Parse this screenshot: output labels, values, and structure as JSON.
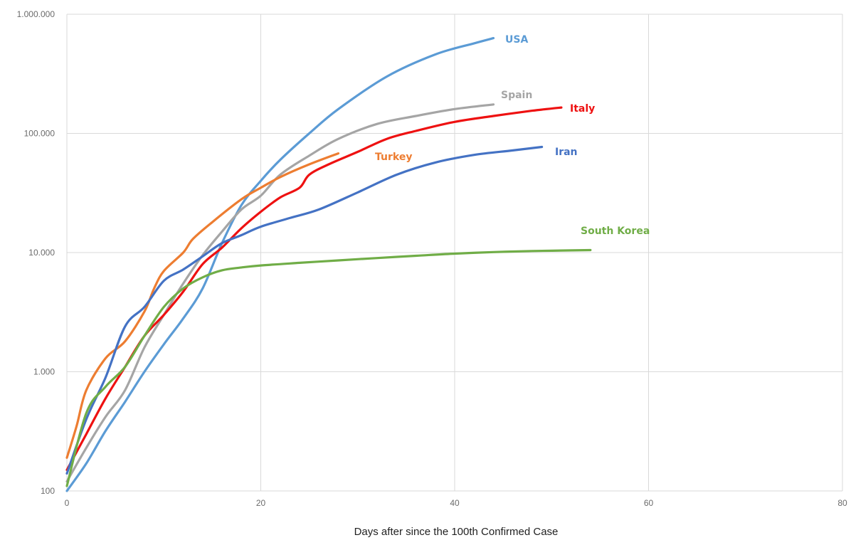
{
  "chart_data": {
    "type": "line",
    "title": "",
    "xlabel": "Days after since the 100th Confirmed Case",
    "ylabel": "",
    "xlim": [
      0,
      80
    ],
    "ylim": [
      100,
      1000000
    ],
    "yscale": "log",
    "grid": true,
    "legend": "inline labels at line ends",
    "x_ticks": [
      0,
      20,
      40,
      60,
      80
    ],
    "y_ticks": [
      {
        "value": 100,
        "label": "100"
      },
      {
        "value": 1000,
        "label": "1.000"
      },
      {
        "value": 10000,
        "label": "10.000"
      },
      {
        "value": 100000,
        "label": "100.000"
      },
      {
        "value": 1000000,
        "label": "1.000.000"
      }
    ],
    "series": [
      {
        "name": "USA",
        "color": "#5b9bd5",
        "x": [
          0,
          2,
          4,
          6,
          8,
          10,
          12,
          14,
          16,
          18,
          20,
          22,
          25,
          28,
          33,
          38,
          42,
          44
        ],
        "y": [
          100,
          170,
          320,
          560,
          1000,
          1700,
          2800,
          5000,
          12000,
          25000,
          40000,
          60000,
          100000,
          160000,
          300000,
          460000,
          570000,
          630000
        ]
      },
      {
        "name": "Spain",
        "color": "#a5a5a5",
        "x": [
          0,
          2,
          4,
          6,
          8,
          10,
          12,
          14,
          16,
          18,
          20,
          22,
          25,
          28,
          32,
          36,
          40,
          44
        ],
        "y": [
          120,
          230,
          420,
          700,
          1600,
          3000,
          5500,
          9500,
          15000,
          23000,
          30000,
          45000,
          65000,
          90000,
          120000,
          140000,
          160000,
          175000
        ]
      },
      {
        "name": "Italy",
        "color": "#ee1111",
        "x": [
          0,
          2,
          4,
          6,
          8,
          10,
          12,
          14,
          16,
          18,
          20,
          22,
          24,
          25,
          27,
          30,
          33,
          36,
          40,
          44,
          48,
          51
        ],
        "y": [
          150,
          300,
          600,
          1100,
          2000,
          3000,
          4700,
          8000,
          11000,
          16000,
          22000,
          29000,
          35000,
          45000,
          55000,
          70000,
          90000,
          105000,
          125000,
          140000,
          155000,
          165000
        ]
      },
      {
        "name": "Turkey",
        "color": "#ed7d31",
        "x": [
          0,
          1,
          2,
          4,
          6,
          8,
          9,
          10,
          12,
          13,
          15,
          18,
          20,
          22,
          25,
          28
        ],
        "y": [
          190,
          350,
          700,
          1300,
          1800,
          3200,
          5000,
          7000,
          10000,
          13000,
          18000,
          28000,
          35000,
          43000,
          55000,
          68000
        ]
      },
      {
        "name": "Iran",
        "color": "#4472c4",
        "x": [
          0,
          2,
          4,
          6,
          8,
          10,
          12,
          14,
          16,
          18,
          20,
          23,
          26,
          30,
          34,
          38,
          42,
          46,
          49
        ],
        "y": [
          140,
          400,
          900,
          2400,
          3500,
          5800,
          7200,
          9300,
          12000,
          14000,
          16500,
          19500,
          23000,
          32000,
          45000,
          57000,
          66000,
          72000,
          77000
        ]
      },
      {
        "name": "South Korea",
        "color": "#70ad47",
        "x": [
          0,
          2,
          4,
          6,
          8,
          10,
          12,
          14,
          16,
          18,
          20,
          24,
          28,
          32,
          36,
          40,
          44,
          48,
          51,
          54
        ],
        "y": [
          110,
          450,
          750,
          1100,
          2000,
          3500,
          5000,
          6200,
          7100,
          7500,
          7800,
          8200,
          8600,
          9000,
          9400,
          9800,
          10100,
          10300,
          10400,
          10500
        ]
      }
    ],
    "labels": [
      {
        "text": "USA",
        "color": "#5b9bd5"
      },
      {
        "text": "Spain",
        "color": "#a5a5a5"
      },
      {
        "text": "Italy",
        "color": "#ee1111"
      },
      {
        "text": "Turkey",
        "color": "#ed7d31"
      },
      {
        "text": "Iran",
        "color": "#4472c4"
      },
      {
        "text": "South Korea",
        "color": "#70ad47"
      }
    ]
  }
}
